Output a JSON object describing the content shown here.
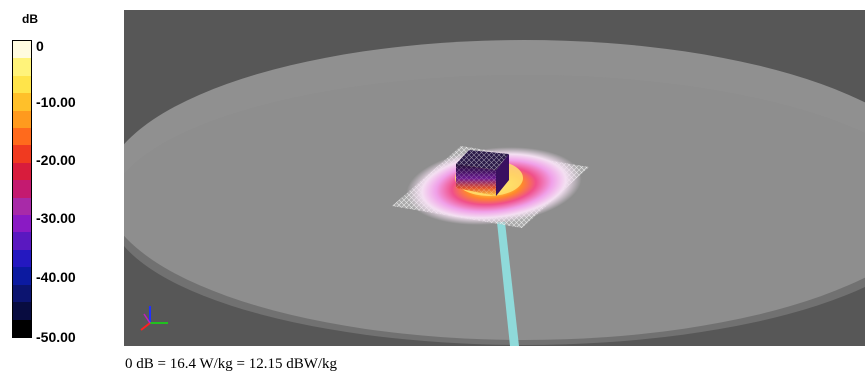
{
  "legend": {
    "unit": "dB",
    "ticks": [
      "0",
      "-10.00",
      "-20.00",
      "-30.00",
      "-40.00",
      "-50.00"
    ],
    "colors": [
      "#fffbe0",
      "#fff37a",
      "#ffe44a",
      "#ffc02a",
      "#ff9a1e",
      "#ff6a1c",
      "#f03a20",
      "#d81c3c",
      "#c41a70",
      "#a82aa8",
      "#8a1ac4",
      "#5a18c0",
      "#2418c0",
      "#0c1aa0",
      "#0c1470",
      "#080c40",
      "#000000"
    ]
  },
  "view": {
    "background_color": "#575757",
    "phantom_color": "#9a9a9a",
    "feed_color": "#8fdada",
    "axis_icon": "xyz-axes-icon"
  },
  "caption": "0 dB = 16.4 W/kg = 12.15 dBW/kg"
}
